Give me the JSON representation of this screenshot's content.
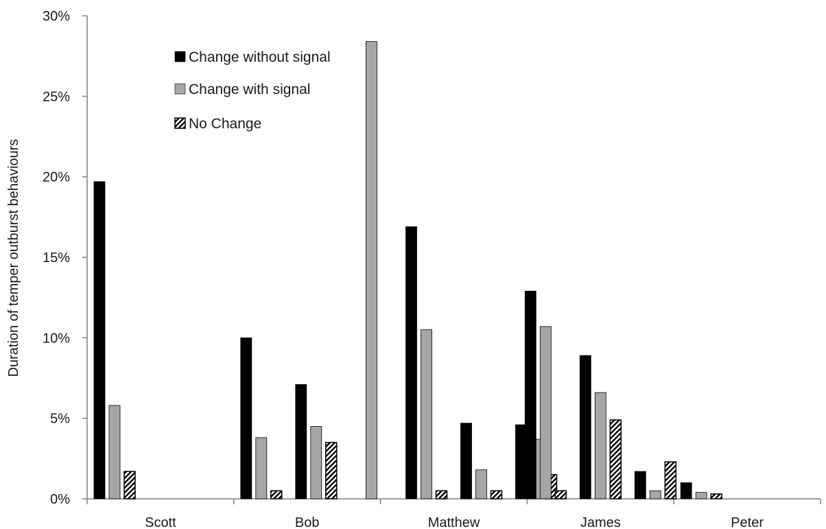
{
  "chart_data": {
    "type": "bar",
    "title": "",
    "xlabel": "",
    "ylabel": "Duration of temper outburst behaviours",
    "ylim": [
      0,
      30
    ],
    "y_ticks": [
      "0%",
      "5%",
      "10%",
      "15%",
      "20%",
      "25%",
      "30%"
    ],
    "grid": false,
    "legend_position": "top-left",
    "series": [
      {
        "name": "Change without signal",
        "color": "#000000",
        "pattern": "solid"
      },
      {
        "name": "Change with signal",
        "color": "#a6a6a6",
        "pattern": "solid"
      },
      {
        "name": "No Change",
        "color": "#000000",
        "pattern": "diagonal-hatch"
      }
    ],
    "participants": [
      {
        "name": "Scott",
        "sessions": [
          [
            19.7,
            5.8,
            1.7
          ]
        ]
      },
      {
        "name": "Bob",
        "sessions": [
          [
            10.0,
            3.8,
            0.5
          ],
          [
            7.1,
            4.5,
            3.5
          ]
        ]
      },
      {
        "name": "Matthew",
        "sessions": [
          [
            0,
            28.4,
            0
          ],
          [
            16.9,
            10.5,
            0.5
          ],
          [
            4.7,
            1.8,
            0.5
          ],
          [
            4.6,
            3.7,
            1.5
          ]
        ]
      },
      {
        "name": "James",
        "sessions": [
          [
            12.9,
            10.7,
            0.5
          ],
          [
            8.9,
            6.6,
            4.9
          ],
          [
            1.7,
            0.5,
            2.3
          ]
        ]
      },
      {
        "name": "Peter",
        "sessions": [
          [
            1.0,
            0.4,
            0.3
          ]
        ]
      }
    ]
  }
}
